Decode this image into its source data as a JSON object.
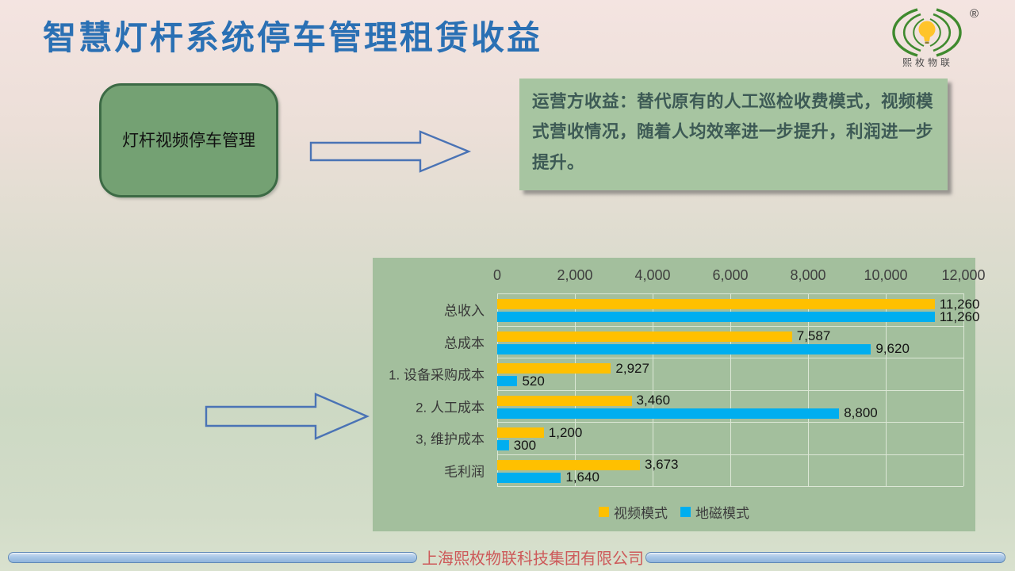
{
  "title": "智慧灯杆系统停车管理租赁收益",
  "logo": {
    "brand": "熙枚物联",
    "registered_mark": "®",
    "arc_color": "#3f8a2e",
    "bulb_color": "#ffc42a"
  },
  "flow_box": {
    "label": "灯杆视频停车管理"
  },
  "note_box": {
    "text": "运营方收益：替代原有的人工巡检收费模式，视频模式营收情况，随着人均效率进一步提升，利润进一步提升。"
  },
  "footer": {
    "company": "上海熙枚物联科技集团有限公司"
  },
  "chart_data": {
    "type": "bar",
    "orientation": "horizontal",
    "title": "",
    "categories": [
      "总收入",
      "总成本",
      "1. 设备采购成本",
      "2. 人工成本",
      "3, 维护成本",
      "毛利润"
    ],
    "series": [
      {
        "name": "视频模式",
        "color": "#FFC000",
        "values": [
          11260,
          7587,
          2927,
          3460,
          1200,
          3673
        ]
      },
      {
        "name": "地磁模式",
        "color": "#00AEEF",
        "values": [
          11260,
          9620,
          520,
          8800,
          300,
          1640
        ]
      }
    ],
    "x_ticks": [
      0,
      2000,
      4000,
      6000,
      8000,
      10000,
      12000
    ],
    "xlim": [
      0,
      12000
    ],
    "grid": true,
    "value_labels": true,
    "legend_position": "bottom",
    "plot_bg": "#a3bf9d"
  }
}
